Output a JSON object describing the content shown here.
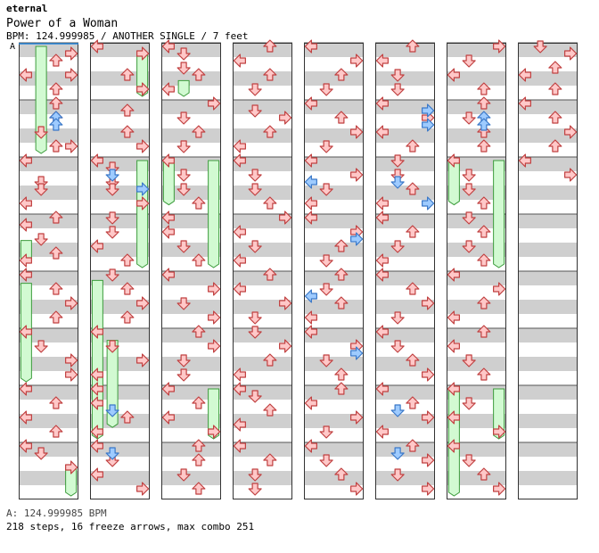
{
  "header": {
    "series": "eternal",
    "song_title": "Power of a Woman",
    "meta": "BPM: 124.999985 / ANOTHER SINGLE / 7 feet",
    "bpm_marker": "A"
  },
  "footer": {
    "bpm_line": "A: 124.999985 BPM",
    "stats_line": "218 steps, 16 freeze arrows, max combo 251"
  },
  "colors": {
    "band": "#cfcfcf",
    "arrow_fill": "#ffc8c8",
    "arrow_stroke": "#c04040",
    "arrow_blue_fill": "#9ecbff",
    "arrow_blue_stroke": "#3a78c8",
    "freeze_fill": "#d2fad2",
    "freeze_stroke": "#3c9c3c",
    "marker_line": "#2a8adf"
  },
  "chart_data": {
    "type": "step-chart",
    "columns": 8,
    "measures_per_column": 8,
    "lanes": [
      "left",
      "down",
      "up",
      "right"
    ],
    "arrows": [
      [
        0,
        0,
        1,
        "right"
      ],
      [
        0,
        0,
        2,
        "up"
      ],
      [
        0,
        0,
        4,
        "left"
      ],
      [
        0,
        0,
        4,
        "right"
      ],
      [
        0,
        0,
        6,
        "up"
      ],
      [
        0,
        1,
        0,
        "up"
      ],
      [
        0,
        1,
        2,
        "up"
      ],
      [
        0,
        1,
        4,
        "down"
      ],
      [
        0,
        1,
        6,
        "up"
      ],
      [
        0,
        1,
        6,
        "right"
      ],
      [
        0,
        2,
        0,
        "left"
      ],
      [
        0,
        2,
        3,
        "down"
      ],
      [
        0,
        2,
        4,
        "down"
      ],
      [
        0,
        2,
        6,
        "left"
      ],
      [
        0,
        3,
        0,
        "up"
      ],
      [
        0,
        3,
        1,
        "left"
      ],
      [
        0,
        3,
        3,
        "down"
      ],
      [
        0,
        3,
        5,
        "up"
      ],
      [
        0,
        3,
        6,
        "left"
      ],
      [
        0,
        4,
        0,
        "left"
      ],
      [
        0,
        4,
        2,
        "up"
      ],
      [
        0,
        4,
        4,
        "right"
      ],
      [
        0,
        4,
        6,
        "up"
      ],
      [
        0,
        5,
        0,
        "left"
      ],
      [
        0,
        5,
        2,
        "down"
      ],
      [
        0,
        5,
        4,
        "right"
      ],
      [
        0,
        5,
        6,
        "right"
      ],
      [
        0,
        6,
        0,
        "left"
      ],
      [
        0,
        6,
        2,
        "up"
      ],
      [
        0,
        6,
        4,
        "left"
      ],
      [
        0,
        6,
        6,
        "up"
      ],
      [
        0,
        7,
        0,
        "left"
      ],
      [
        0,
        7,
        1,
        "down"
      ],
      [
        0,
        7,
        3,
        "right"
      ],
      [
        1,
        0,
        0,
        "left"
      ],
      [
        1,
        0,
        1,
        "right"
      ],
      [
        1,
        0,
        4,
        "up"
      ],
      [
        1,
        0,
        6,
        "right"
      ],
      [
        1,
        1,
        1,
        "up"
      ],
      [
        1,
        1,
        4,
        "up"
      ],
      [
        1,
        1,
        6,
        "right"
      ],
      [
        1,
        2,
        0,
        "left"
      ],
      [
        1,
        2,
        1,
        "down"
      ],
      [
        1,
        2,
        3,
        "down"
      ],
      [
        1,
        2,
        4,
        "down"
      ],
      [
        1,
        2,
        6,
        "right"
      ],
      [
        1,
        3,
        0,
        "down"
      ],
      [
        1,
        3,
        2,
        "down"
      ],
      [
        1,
        3,
        4,
        "left"
      ],
      [
        1,
        3,
        6,
        "up"
      ],
      [
        1,
        4,
        0,
        "down"
      ],
      [
        1,
        4,
        2,
        "up"
      ],
      [
        1,
        4,
        4,
        "right"
      ],
      [
        1,
        4,
        6,
        "up"
      ],
      [
        1,
        5,
        0,
        "left"
      ],
      [
        1,
        5,
        2,
        "down"
      ],
      [
        1,
        5,
        4,
        "right"
      ],
      [
        1,
        5,
        6,
        "left"
      ],
      [
        1,
        6,
        0,
        "left"
      ],
      [
        1,
        6,
        2,
        "left"
      ],
      [
        1,
        6,
        4,
        "up"
      ],
      [
        1,
        6,
        6,
        "left"
      ],
      [
        1,
        7,
        0,
        "left"
      ],
      [
        1,
        7,
        2,
        "down"
      ],
      [
        1,
        7,
        4,
        "left"
      ],
      [
        1,
        7,
        6,
        "right"
      ],
      [
        2,
        0,
        0,
        "left"
      ],
      [
        2,
        0,
        1,
        "down"
      ],
      [
        2,
        0,
        3,
        "down"
      ],
      [
        2,
        0,
        4,
        "up"
      ],
      [
        2,
        0,
        6,
        "left"
      ],
      [
        2,
        1,
        0,
        "right"
      ],
      [
        2,
        1,
        2,
        "down"
      ],
      [
        2,
        1,
        4,
        "up"
      ],
      [
        2,
        1,
        6,
        "down"
      ],
      [
        2,
        2,
        0,
        "left"
      ],
      [
        2,
        2,
        2,
        "down"
      ],
      [
        2,
        2,
        4,
        "down"
      ],
      [
        2,
        2,
        6,
        "up"
      ],
      [
        2,
        3,
        0,
        "left"
      ],
      [
        2,
        3,
        2,
        "left"
      ],
      [
        2,
        3,
        4,
        "down"
      ],
      [
        2,
        3,
        6,
        "up"
      ],
      [
        2,
        4,
        0,
        "left"
      ],
      [
        2,
        4,
        2,
        "right"
      ],
      [
        2,
        4,
        4,
        "down"
      ],
      [
        2,
        4,
        6,
        "right"
      ],
      [
        2,
        5,
        0,
        "up"
      ],
      [
        2,
        5,
        2,
        "right"
      ],
      [
        2,
        5,
        4,
        "down"
      ],
      [
        2,
        5,
        6,
        "down"
      ],
      [
        2,
        6,
        0,
        "left"
      ],
      [
        2,
        6,
        2,
        "up"
      ],
      [
        2,
        6,
        4,
        "left"
      ],
      [
        2,
        6,
        6,
        "right"
      ],
      [
        2,
        7,
        0,
        "up"
      ],
      [
        2,
        7,
        2,
        "up"
      ],
      [
        2,
        7,
        4,
        "down"
      ],
      [
        2,
        7,
        6,
        "up"
      ],
      [
        3,
        0,
        0,
        "up"
      ],
      [
        3,
        0,
        2,
        "left"
      ],
      [
        3,
        0,
        4,
        "up"
      ],
      [
        3,
        0,
        6,
        "down"
      ],
      [
        3,
        1,
        1,
        "down"
      ],
      [
        3,
        1,
        2,
        "right"
      ],
      [
        3,
        1,
        4,
        "up"
      ],
      [
        3,
        1,
        6,
        "left"
      ],
      [
        3,
        2,
        0,
        "left"
      ],
      [
        3,
        2,
        2,
        "down"
      ],
      [
        3,
        2,
        4,
        "down"
      ],
      [
        3,
        2,
        6,
        "up"
      ],
      [
        3,
        3,
        0,
        "right"
      ],
      [
        3,
        3,
        2,
        "left"
      ],
      [
        3,
        3,
        4,
        "down"
      ],
      [
        3,
        3,
        6,
        "left"
      ],
      [
        3,
        4,
        0,
        "up"
      ],
      [
        3,
        4,
        2,
        "left"
      ],
      [
        3,
        4,
        4,
        "right"
      ],
      [
        3,
        4,
        6,
        "down"
      ],
      [
        3,
        5,
        0,
        "down"
      ],
      [
        3,
        5,
        2,
        "right"
      ],
      [
        3,
        5,
        4,
        "up"
      ],
      [
        3,
        5,
        6,
        "left"
      ],
      [
        3,
        6,
        0,
        "left"
      ],
      [
        3,
        6,
        1,
        "down"
      ],
      [
        3,
        6,
        3,
        "up"
      ],
      [
        3,
        6,
        5,
        "left"
      ],
      [
        3,
        7,
        0,
        "left"
      ],
      [
        3,
        7,
        2,
        "up"
      ],
      [
        3,
        7,
        4,
        "down"
      ],
      [
        3,
        7,
        6,
        "down"
      ],
      [
        4,
        0,
        0,
        "left"
      ],
      [
        4,
        0,
        2,
        "right"
      ],
      [
        4,
        0,
        4,
        "up"
      ],
      [
        4,
        0,
        6,
        "down"
      ],
      [
        4,
        1,
        0,
        "left"
      ],
      [
        4,
        1,
        2,
        "up"
      ],
      [
        4,
        1,
        4,
        "right"
      ],
      [
        4,
        1,
        6,
        "down"
      ],
      [
        4,
        2,
        0,
        "left"
      ],
      [
        4,
        2,
        2,
        "right"
      ],
      [
        4,
        2,
        4,
        "down"
      ],
      [
        4,
        2,
        6,
        "left"
      ],
      [
        4,
        3,
        0,
        "left"
      ],
      [
        4,
        3,
        2,
        "right"
      ],
      [
        4,
        3,
        4,
        "up"
      ],
      [
        4,
        3,
        6,
        "down"
      ],
      [
        4,
        4,
        0,
        "up"
      ],
      [
        4,
        4,
        2,
        "down"
      ],
      [
        4,
        4,
        4,
        "up"
      ],
      [
        4,
        4,
        6,
        "left"
      ],
      [
        4,
        5,
        0,
        "left"
      ],
      [
        4,
        5,
        2,
        "right"
      ],
      [
        4,
        5,
        4,
        "down"
      ],
      [
        4,
        5,
        6,
        "up"
      ],
      [
        4,
        6,
        0,
        "up"
      ],
      [
        4,
        6,
        2,
        "left"
      ],
      [
        4,
        6,
        4,
        "right"
      ],
      [
        4,
        6,
        6,
        "down"
      ],
      [
        4,
        7,
        0,
        "left"
      ],
      [
        4,
        7,
        2,
        "down"
      ],
      [
        4,
        7,
        4,
        "up"
      ],
      [
        4,
        7,
        6,
        "right"
      ],
      [
        5,
        0,
        0,
        "up"
      ],
      [
        5,
        0,
        2,
        "left"
      ],
      [
        5,
        0,
        4,
        "down"
      ],
      [
        5,
        0,
        6,
        "down"
      ],
      [
        5,
        1,
        0,
        "left"
      ],
      [
        5,
        1,
        2,
        "right"
      ],
      [
        5,
        1,
        4,
        "left"
      ],
      [
        5,
        1,
        6,
        "up"
      ],
      [
        5,
        2,
        0,
        "down"
      ],
      [
        5,
        2,
        2,
        "down"
      ],
      [
        5,
        2,
        4,
        "up"
      ],
      [
        5,
        2,
        6,
        "left"
      ],
      [
        5,
        3,
        0,
        "left"
      ],
      [
        5,
        3,
        2,
        "up"
      ],
      [
        5,
        3,
        4,
        "down"
      ],
      [
        5,
        3,
        6,
        "left"
      ],
      [
        5,
        4,
        0,
        "left"
      ],
      [
        5,
        4,
        2,
        "up"
      ],
      [
        5,
        4,
        4,
        "right"
      ],
      [
        5,
        4,
        6,
        "down"
      ],
      [
        5,
        5,
        0,
        "left"
      ],
      [
        5,
        5,
        2,
        "down"
      ],
      [
        5,
        5,
        4,
        "up"
      ],
      [
        5,
        5,
        6,
        "right"
      ],
      [
        5,
        6,
        0,
        "left"
      ],
      [
        5,
        6,
        2,
        "up"
      ],
      [
        5,
        6,
        4,
        "right"
      ],
      [
        5,
        6,
        6,
        "left"
      ],
      [
        5,
        7,
        0,
        "up"
      ],
      [
        5,
        7,
        2,
        "right"
      ],
      [
        5,
        7,
        4,
        "down"
      ],
      [
        5,
        7,
        6,
        "right"
      ],
      [
        6,
        0,
        0,
        "right"
      ],
      [
        6,
        0,
        2,
        "down"
      ],
      [
        6,
        0,
        4,
        "left"
      ],
      [
        6,
        0,
        6,
        "up"
      ],
      [
        6,
        1,
        0,
        "up"
      ],
      [
        6,
        1,
        2,
        "down"
      ],
      [
        6,
        1,
        4,
        "up"
      ],
      [
        6,
        1,
        6,
        "up"
      ],
      [
        6,
        2,
        0,
        "left"
      ],
      [
        6,
        2,
        2,
        "down"
      ],
      [
        6,
        2,
        4,
        "down"
      ],
      [
        6,
        2,
        6,
        "up"
      ],
      [
        6,
        3,
        0,
        "down"
      ],
      [
        6,
        3,
        2,
        "up"
      ],
      [
        6,
        3,
        4,
        "down"
      ],
      [
        6,
        3,
        6,
        "up"
      ],
      [
        6,
        4,
        0,
        "left"
      ],
      [
        6,
        4,
        2,
        "right"
      ],
      [
        6,
        4,
        4,
        "up"
      ],
      [
        6,
        4,
        6,
        "left"
      ],
      [
        6,
        5,
        0,
        "up"
      ],
      [
        6,
        5,
        2,
        "left"
      ],
      [
        6,
        5,
        4,
        "down"
      ],
      [
        6,
        5,
        6,
        "up"
      ],
      [
        6,
        6,
        0,
        "left"
      ],
      [
        6,
        6,
        2,
        "down"
      ],
      [
        6,
        6,
        4,
        "left"
      ],
      [
        6,
        6,
        6,
        "right"
      ],
      [
        6,
        7,
        0,
        "left"
      ],
      [
        6,
        7,
        2,
        "down"
      ],
      [
        6,
        7,
        4,
        "up"
      ],
      [
        6,
        7,
        6,
        "right"
      ],
      [
        7,
        0,
        0,
        "down"
      ],
      [
        7,
        0,
        1,
        "right"
      ],
      [
        7,
        0,
        3,
        "up"
      ],
      [
        7,
        0,
        4,
        "left"
      ],
      [
        7,
        0,
        6,
        "up"
      ],
      [
        7,
        1,
        0,
        "left"
      ],
      [
        7,
        1,
        2,
        "up"
      ],
      [
        7,
        1,
        4,
        "right"
      ],
      [
        7,
        1,
        6,
        "up"
      ],
      [
        7,
        2,
        0,
        "left"
      ],
      [
        7,
        2,
        2,
        "right"
      ]
    ],
    "blue_arrows": [
      [
        0,
        1,
        2,
        "up"
      ],
      [
        0,
        1,
        3,
        "up"
      ],
      [
        1,
        2,
        2,
        "down"
      ],
      [
        1,
        2,
        4,
        "right"
      ],
      [
        1,
        6,
        3,
        "down"
      ],
      [
        1,
        7,
        1,
        "down"
      ],
      [
        4,
        2,
        3,
        "left"
      ],
      [
        4,
        3,
        3,
        "right"
      ],
      [
        4,
        4,
        3,
        "left"
      ],
      [
        4,
        5,
        3,
        "right"
      ],
      [
        5,
        1,
        1,
        "right"
      ],
      [
        5,
        1,
        3,
        "right"
      ],
      [
        5,
        2,
        3,
        "down"
      ],
      [
        5,
        2,
        6,
        "right"
      ],
      [
        5,
        6,
        3,
        "down"
      ],
      [
        5,
        7,
        1,
        "down"
      ],
      [
        6,
        1,
        2,
        "up"
      ],
      [
        6,
        1,
        3,
        "up"
      ]
    ],
    "freezes": [
      [
        0,
        "down",
        0.0,
        2.0
      ],
      [
        0,
        "left",
        3.4,
        3.9
      ],
      [
        0,
        "left",
        4.15,
        6.0
      ],
      [
        0,
        "right",
        7.4,
        8.0
      ],
      [
        1,
        "right",
        0.15,
        1.0
      ],
      [
        1,
        "right",
        2.0,
        4.0
      ],
      [
        1,
        "left",
        4.1,
        7.0
      ],
      [
        1,
        "down",
        5.15,
        6.8
      ],
      [
        2,
        "down",
        0.6,
        1.0
      ],
      [
        2,
        "left",
        2.0,
        2.9
      ],
      [
        2,
        "right",
        2.0,
        4.0
      ],
      [
        2,
        "right",
        6.0,
        7.0
      ],
      [
        6,
        "left",
        2.0,
        2.9
      ],
      [
        6,
        "right",
        2.0,
        4.0
      ],
      [
        6,
        "left",
        6.0,
        8.0
      ],
      [
        6,
        "right",
        6.0,
        7.0
      ]
    ]
  }
}
